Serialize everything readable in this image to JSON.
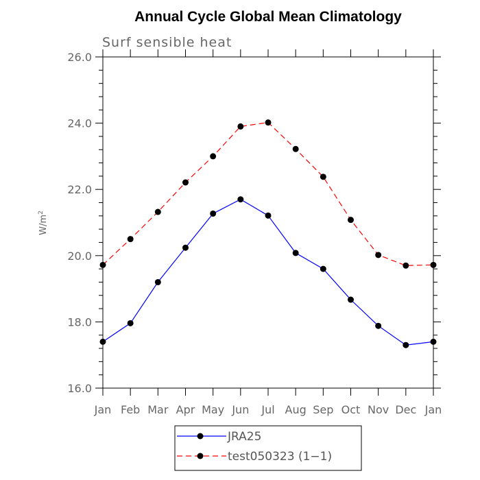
{
  "chart_data": {
    "type": "line",
    "title": "Annual Cycle Global Mean Climatology",
    "subtitle": "Surf sensible heat",
    "ylabel": "W/m",
    "ylabel_sup": "2",
    "xlabel": "",
    "categories": [
      "Jan",
      "Feb",
      "Mar",
      "Apr",
      "May",
      "Jun",
      "Jul",
      "Aug",
      "Sep",
      "Oct",
      "Nov",
      "Dec",
      "Jan"
    ],
    "ylim": [
      16.0,
      26.0
    ],
    "yticks": [
      "16.0",
      "18.0",
      "20.0",
      "22.0",
      "24.0",
      "26.0"
    ],
    "grid": false,
    "legend_position": "bottom",
    "series": [
      {
        "name": "JRA25",
        "color": "#0000ff",
        "dash": "solid",
        "values": [
          17.4,
          17.96,
          19.2,
          20.24,
          21.27,
          21.7,
          21.21,
          20.08,
          19.6,
          18.67,
          17.88,
          17.3,
          17.4
        ]
      },
      {
        "name": "test050323 (1−1)",
        "color": "#ff0000",
        "dash": "dashed",
        "values": [
          19.72,
          20.5,
          21.32,
          22.21,
          23.0,
          23.9,
          24.02,
          23.22,
          22.38,
          21.08,
          20.02,
          19.7,
          19.72
        ]
      }
    ]
  }
}
